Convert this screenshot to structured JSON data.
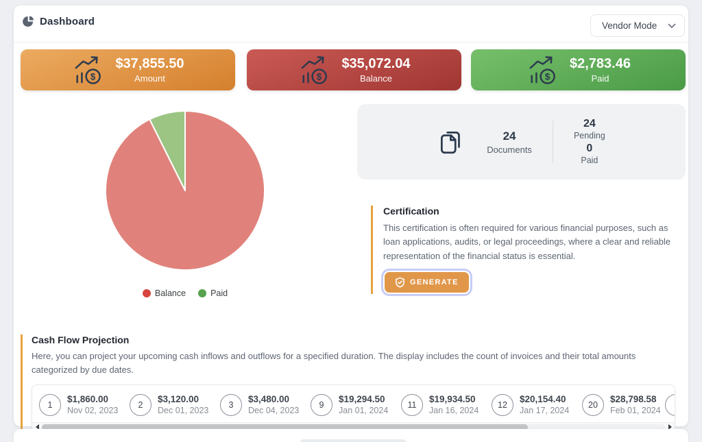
{
  "header": {
    "title": "Dashboard",
    "mode_select": {
      "value": "Vendor Mode"
    }
  },
  "stats": [
    {
      "value": "$37,855.50",
      "label": "Amount",
      "gradient": [
        "#ecab61",
        "#d5802d"
      ]
    },
    {
      "value": "$35,072.04",
      "label": "Balance",
      "gradient": [
        "#ca5a55",
        "#a03632"
      ]
    },
    {
      "value": "$2,783.46",
      "label": "Paid",
      "gradient": [
        "#77c06b",
        "#4a9a46"
      ]
    }
  ],
  "chart_data": {
    "type": "pie",
    "labels": [
      "Balance",
      "Paid"
    ],
    "values": [
      35072.04,
      2783.46
    ],
    "colors": [
      "#e0827b",
      "#9cc584"
    ],
    "legend_colors": [
      "#d8453e",
      "#56a24e"
    ],
    "legend_position": "bottom",
    "start_angle": "top",
    "direction": "clockwise"
  },
  "documents": {
    "count": "24",
    "count_label": "Documents",
    "pending": "24",
    "pending_label": "Pending",
    "paid": "0",
    "paid_label": "Paid"
  },
  "certification": {
    "title": "Certification",
    "description": "This certification is often required for various financial purposes, such as loan applications, audits, or legal proceedings, where a clear and reliable representation of the financial status is essential.",
    "button_label": "GENERATE"
  },
  "cash_flow": {
    "title": "Cash Flow Projection",
    "description": "Here, you can project your upcoming cash inflows and outflows for a specified duration. The display includes the count of invoices and their total amounts categorized by due dates.",
    "items": [
      {
        "number": "1",
        "amount": "$1,860.00",
        "date": "Nov 02, 2023"
      },
      {
        "number": "2",
        "amount": "$3,120.00",
        "date": "Dec 01, 2023"
      },
      {
        "number": "3",
        "amount": "$3,480.00",
        "date": "Dec 04, 2023"
      },
      {
        "number": "9",
        "amount": "$19,294.50",
        "date": "Jan 01, 2024"
      },
      {
        "number": "11",
        "amount": "$19,934.50",
        "date": "Jan 16, 2024"
      },
      {
        "number": "12",
        "amount": "$20,154.40",
        "date": "Jan 17, 2024"
      },
      {
        "number": "20",
        "amount": "$28,798.58",
        "date": "Feb 01, 2024"
      }
    ]
  },
  "colors": {
    "accent_orange": "#e7a23d",
    "page_background": "#edeff2",
    "icon_dark": "#2c3a4e"
  }
}
